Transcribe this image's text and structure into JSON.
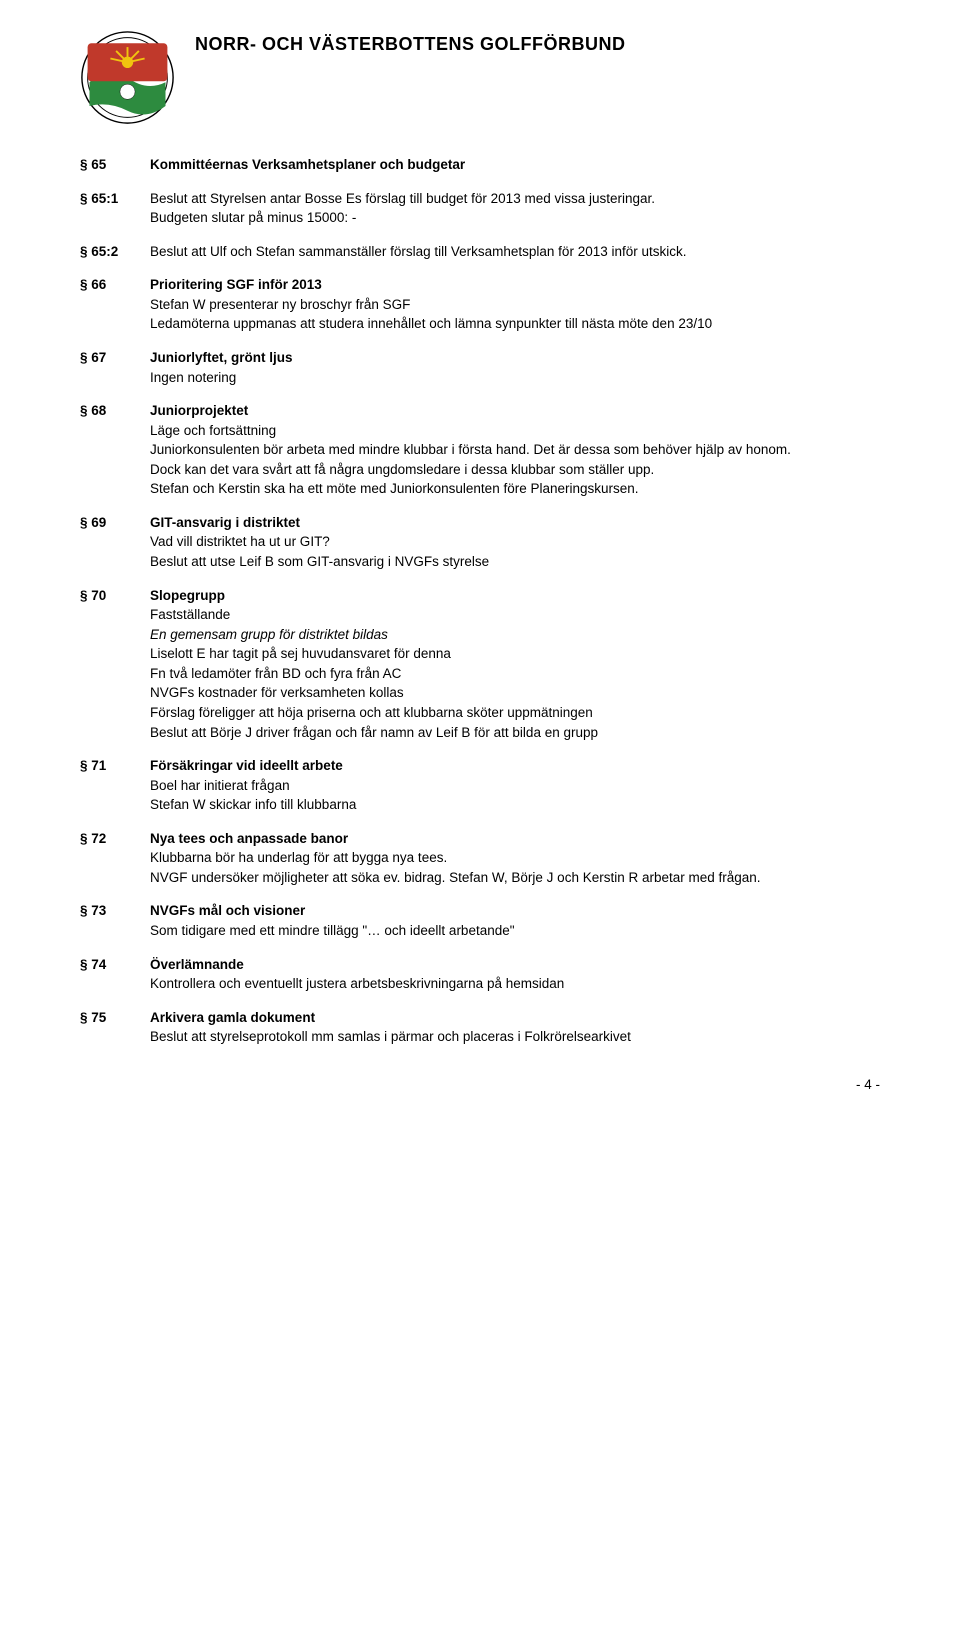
{
  "header": {
    "title": "NORR- OCH VÄSTERBOTTENS GOLFFÖRBUND"
  },
  "sections": {
    "s65": {
      "num": "§ 65",
      "heading": "Kommittéernas Verksamhetsplaner och budgetar"
    },
    "s65_1": {
      "num": "§ 65:1",
      "body": "Beslut att Styrelsen antar Bosse Es förslag till budget för 2013 med vissa justeringar.\nBudgeten slutar på minus 15000: -"
    },
    "s65_2": {
      "num": "§ 65:2",
      "body": "Beslut att Ulf och Stefan sammanställer förslag till Verksamhetsplan för 2013 inför utskick."
    },
    "s66": {
      "num": "§ 66",
      "heading": "Prioritering SGF inför 2013",
      "body": "Stefan W presenterar ny broschyr från SGF\nLedamöterna uppmanas att studera innehållet och lämna synpunkter till nästa möte den 23/10"
    },
    "s67": {
      "num": "§ 67",
      "heading": "Juniorlyftet, grönt ljus",
      "body": "Ingen notering"
    },
    "s68": {
      "num": "§ 68",
      "heading": "Juniorprojektet",
      "body_line1": "Läge och fortsättning",
      "body_p1": "Juniorkonsulenten bör arbeta med mindre klubbar i första hand. Det är dessa som behöver hjälp av honom.",
      "body_p2": "Dock kan det vara svårt att få några ungdomsledare i dessa klubbar som ställer upp.",
      "body_p3": "Stefan och Kerstin ska ha ett möte med Juniorkonsulenten före Planeringskursen."
    },
    "s69": {
      "num": "§ 69",
      "heading": "GIT-ansvarig i distriktet",
      "body_line1": "Vad vill distriktet ha ut ur GIT?",
      "body_line2": "Beslut att utse Leif B som GIT-ansvarig i NVGFs styrelse"
    },
    "s70": {
      "num": "§ 70",
      "heading": "Slopegrupp",
      "body_line1": "Fastställande",
      "body_italic": "En gemensam grupp för distriktet bildas",
      "body_line3": "Liselott E har tagit på sej huvudansvaret för denna",
      "body_line4": "Fn två ledamöter från BD och fyra från AC",
      "body_line5": "NVGFs kostnader för verksamheten kollas",
      "body_line6": "Förslag föreligger att höja priserna och att klubbarna sköter uppmätningen",
      "body_line7": "Beslut att Börje J driver frågan och får namn av Leif B för att bilda en grupp"
    },
    "s71": {
      "num": "§ 71",
      "heading": "Försäkringar vid ideellt arbete",
      "body_line1": "Boel har initierat frågan",
      "body_line2": "Stefan W skickar info till klubbarna"
    },
    "s72": {
      "num": "§ 72",
      "heading": "Nya tees och anpassade banor",
      "body_line1": "Klubbarna bör ha underlag för att bygga nya tees.",
      "body_p1": "NVGF undersöker möjligheter att söka ev. bidrag. Stefan W, Börje J och Kerstin R arbetar med frågan."
    },
    "s73": {
      "num": "§ 73",
      "heading": "NVGFs mål och visioner",
      "body": "Som tidigare med ett mindre tillägg \"… och ideellt arbetande\""
    },
    "s74": {
      "num": "§ 74",
      "heading": "Överlämnande",
      "body": "Kontrollera och eventuellt justera arbetsbeskrivningarna på hemsidan"
    },
    "s75": {
      "num": "§ 75",
      "heading": "Arkivera gamla dokument",
      "body": "Beslut att styrelseprotokoll mm samlas i pärmar och placeras i Folkrörelsearkivet"
    }
  },
  "page_number": "- 4 -"
}
